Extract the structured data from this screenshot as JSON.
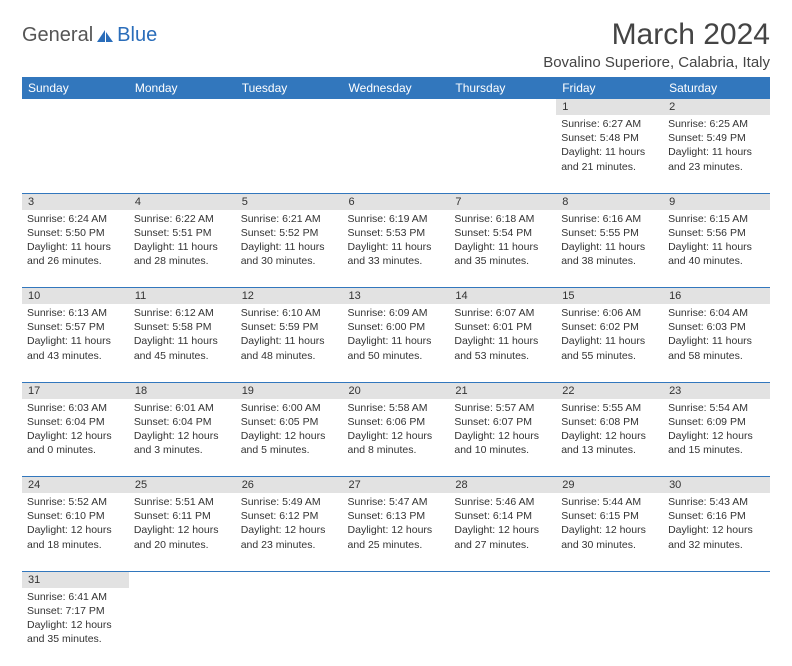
{
  "logo": {
    "general": "General",
    "blue": "Blue"
  },
  "title": "March 2024",
  "location": "Bovalino Superiore, Calabria, Italy",
  "dow": [
    "Sunday",
    "Monday",
    "Tuesday",
    "Wednesday",
    "Thursday",
    "Friday",
    "Saturday"
  ],
  "colors": {
    "header_bg": "#3277bd",
    "header_text": "#ffffff",
    "daynum_bg": "#e2e2e2",
    "border": "#3277bd"
  },
  "weeks": [
    {
      "nums": [
        "",
        "",
        "",
        "",
        "",
        "1",
        "2"
      ],
      "cells": [
        null,
        null,
        null,
        null,
        null,
        {
          "sunrise": "Sunrise: 6:27 AM",
          "sunset": "Sunset: 5:48 PM",
          "daylight": "Daylight: 11 hours and 21 minutes."
        },
        {
          "sunrise": "Sunrise: 6:25 AM",
          "sunset": "Sunset: 5:49 PM",
          "daylight": "Daylight: 11 hours and 23 minutes."
        }
      ]
    },
    {
      "nums": [
        "3",
        "4",
        "5",
        "6",
        "7",
        "8",
        "9"
      ],
      "cells": [
        {
          "sunrise": "Sunrise: 6:24 AM",
          "sunset": "Sunset: 5:50 PM",
          "daylight": "Daylight: 11 hours and 26 minutes."
        },
        {
          "sunrise": "Sunrise: 6:22 AM",
          "sunset": "Sunset: 5:51 PM",
          "daylight": "Daylight: 11 hours and 28 minutes."
        },
        {
          "sunrise": "Sunrise: 6:21 AM",
          "sunset": "Sunset: 5:52 PM",
          "daylight": "Daylight: 11 hours and 30 minutes."
        },
        {
          "sunrise": "Sunrise: 6:19 AM",
          "sunset": "Sunset: 5:53 PM",
          "daylight": "Daylight: 11 hours and 33 minutes."
        },
        {
          "sunrise": "Sunrise: 6:18 AM",
          "sunset": "Sunset: 5:54 PM",
          "daylight": "Daylight: 11 hours and 35 minutes."
        },
        {
          "sunrise": "Sunrise: 6:16 AM",
          "sunset": "Sunset: 5:55 PM",
          "daylight": "Daylight: 11 hours and 38 minutes."
        },
        {
          "sunrise": "Sunrise: 6:15 AM",
          "sunset": "Sunset: 5:56 PM",
          "daylight": "Daylight: 11 hours and 40 minutes."
        }
      ]
    },
    {
      "nums": [
        "10",
        "11",
        "12",
        "13",
        "14",
        "15",
        "16"
      ],
      "cells": [
        {
          "sunrise": "Sunrise: 6:13 AM",
          "sunset": "Sunset: 5:57 PM",
          "daylight": "Daylight: 11 hours and 43 minutes."
        },
        {
          "sunrise": "Sunrise: 6:12 AM",
          "sunset": "Sunset: 5:58 PM",
          "daylight": "Daylight: 11 hours and 45 minutes."
        },
        {
          "sunrise": "Sunrise: 6:10 AM",
          "sunset": "Sunset: 5:59 PM",
          "daylight": "Daylight: 11 hours and 48 minutes."
        },
        {
          "sunrise": "Sunrise: 6:09 AM",
          "sunset": "Sunset: 6:00 PM",
          "daylight": "Daylight: 11 hours and 50 minutes."
        },
        {
          "sunrise": "Sunrise: 6:07 AM",
          "sunset": "Sunset: 6:01 PM",
          "daylight": "Daylight: 11 hours and 53 minutes."
        },
        {
          "sunrise": "Sunrise: 6:06 AM",
          "sunset": "Sunset: 6:02 PM",
          "daylight": "Daylight: 11 hours and 55 minutes."
        },
        {
          "sunrise": "Sunrise: 6:04 AM",
          "sunset": "Sunset: 6:03 PM",
          "daylight": "Daylight: 11 hours and 58 minutes."
        }
      ]
    },
    {
      "nums": [
        "17",
        "18",
        "19",
        "20",
        "21",
        "22",
        "23"
      ],
      "cells": [
        {
          "sunrise": "Sunrise: 6:03 AM",
          "sunset": "Sunset: 6:04 PM",
          "daylight": "Daylight: 12 hours and 0 minutes."
        },
        {
          "sunrise": "Sunrise: 6:01 AM",
          "sunset": "Sunset: 6:04 PM",
          "daylight": "Daylight: 12 hours and 3 minutes."
        },
        {
          "sunrise": "Sunrise: 6:00 AM",
          "sunset": "Sunset: 6:05 PM",
          "daylight": "Daylight: 12 hours and 5 minutes."
        },
        {
          "sunrise": "Sunrise: 5:58 AM",
          "sunset": "Sunset: 6:06 PM",
          "daylight": "Daylight: 12 hours and 8 minutes."
        },
        {
          "sunrise": "Sunrise: 5:57 AM",
          "sunset": "Sunset: 6:07 PM",
          "daylight": "Daylight: 12 hours and 10 minutes."
        },
        {
          "sunrise": "Sunrise: 5:55 AM",
          "sunset": "Sunset: 6:08 PM",
          "daylight": "Daylight: 12 hours and 13 minutes."
        },
        {
          "sunrise": "Sunrise: 5:54 AM",
          "sunset": "Sunset: 6:09 PM",
          "daylight": "Daylight: 12 hours and 15 minutes."
        }
      ]
    },
    {
      "nums": [
        "24",
        "25",
        "26",
        "27",
        "28",
        "29",
        "30"
      ],
      "cells": [
        {
          "sunrise": "Sunrise: 5:52 AM",
          "sunset": "Sunset: 6:10 PM",
          "daylight": "Daylight: 12 hours and 18 minutes."
        },
        {
          "sunrise": "Sunrise: 5:51 AM",
          "sunset": "Sunset: 6:11 PM",
          "daylight": "Daylight: 12 hours and 20 minutes."
        },
        {
          "sunrise": "Sunrise: 5:49 AM",
          "sunset": "Sunset: 6:12 PM",
          "daylight": "Daylight: 12 hours and 23 minutes."
        },
        {
          "sunrise": "Sunrise: 5:47 AM",
          "sunset": "Sunset: 6:13 PM",
          "daylight": "Daylight: 12 hours and 25 minutes."
        },
        {
          "sunrise": "Sunrise: 5:46 AM",
          "sunset": "Sunset: 6:14 PM",
          "daylight": "Daylight: 12 hours and 27 minutes."
        },
        {
          "sunrise": "Sunrise: 5:44 AM",
          "sunset": "Sunset: 6:15 PM",
          "daylight": "Daylight: 12 hours and 30 minutes."
        },
        {
          "sunrise": "Sunrise: 5:43 AM",
          "sunset": "Sunset: 6:16 PM",
          "daylight": "Daylight: 12 hours and 32 minutes."
        }
      ]
    },
    {
      "nums": [
        "31",
        "",
        "",
        "",
        "",
        "",
        ""
      ],
      "cells": [
        {
          "sunrise": "Sunrise: 6:41 AM",
          "sunset": "Sunset: 7:17 PM",
          "daylight": "Daylight: 12 hours and 35 minutes."
        },
        null,
        null,
        null,
        null,
        null,
        null
      ]
    }
  ]
}
